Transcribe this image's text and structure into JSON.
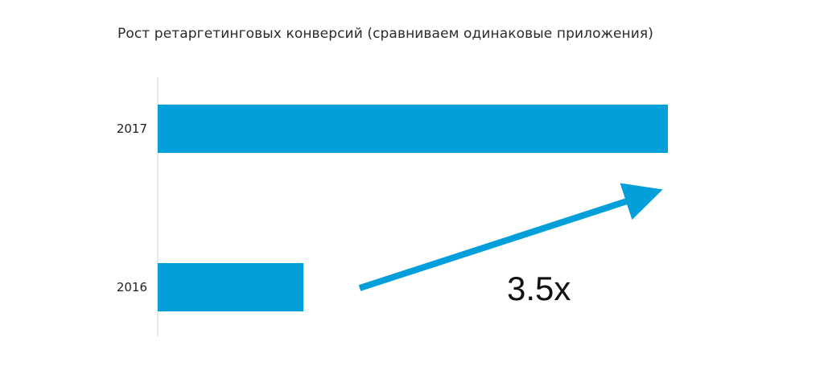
{
  "chart_data": {
    "type": "bar",
    "orientation": "horizontal",
    "title": "Рост ретаргетинговых конверсий (сравниваем одинаковые приложения)",
    "categories": [
      "2017",
      "2016"
    ],
    "values": [
      3.5,
      1
    ],
    "xlim": [
      0,
      3.5
    ],
    "grid": false,
    "bar_color": "#039fdb",
    "annotation": {
      "text": "3.5x",
      "arrow_color": "#039fdb"
    }
  }
}
